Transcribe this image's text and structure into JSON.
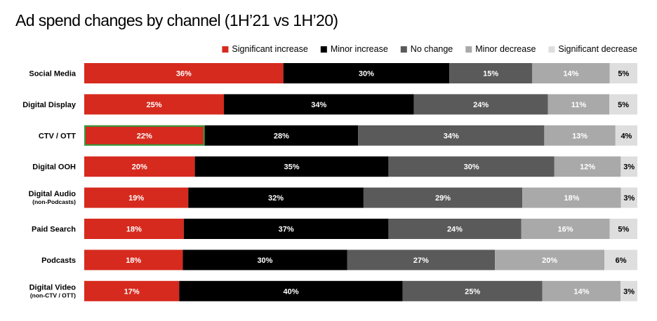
{
  "chart_data": {
    "type": "bar",
    "orientation": "horizontal",
    "stacked": true,
    "title": "Ad spend changes by channel (1H’21 vs 1H’20)",
    "legend_position": "top-right",
    "categories": [
      {
        "label": "Social Media",
        "sublabel": ""
      },
      {
        "label": "Digital Display",
        "sublabel": ""
      },
      {
        "label": "CTV / OTT",
        "sublabel": ""
      },
      {
        "label": "Digital OOH",
        "sublabel": ""
      },
      {
        "label": "Digital Audio",
        "sublabel": "(non-Podcasts)"
      },
      {
        "label": "Paid Search",
        "sublabel": ""
      },
      {
        "label": "Podcasts",
        "sublabel": ""
      },
      {
        "label": "Digital Video",
        "sublabel": "(non-CTV / OTT)"
      }
    ],
    "series": [
      {
        "name": "Significant increase",
        "color": "#d62a1e",
        "label_color": "#ffffff",
        "values": [
          36,
          25,
          22,
          20,
          19,
          18,
          18,
          17
        ]
      },
      {
        "name": "Minor increase",
        "color": "#000000",
        "label_color": "#ffffff",
        "values": [
          30,
          34,
          28,
          35,
          32,
          37,
          30,
          40
        ]
      },
      {
        "name": "No change",
        "color": "#5a5a5a",
        "label_color": "#ffffff",
        "values": [
          15,
          24,
          34,
          30,
          29,
          24,
          27,
          25
        ]
      },
      {
        "name": "Minor decrease",
        "color": "#a9a9a9",
        "label_color": "#ffffff",
        "values": [
          14,
          11,
          13,
          12,
          18,
          16,
          20,
          14
        ]
      },
      {
        "name": "Significant decrease",
        "color": "#dedede",
        "label_color": "#000000",
        "values": [
          5,
          5,
          4,
          3,
          3,
          5,
          6,
          3
        ]
      }
    ],
    "value_suffix": "%",
    "highlight": {
      "category_index": 2,
      "series_index": 0,
      "color": "#2e9e3e"
    },
    "xlim": [
      0,
      100
    ]
  }
}
